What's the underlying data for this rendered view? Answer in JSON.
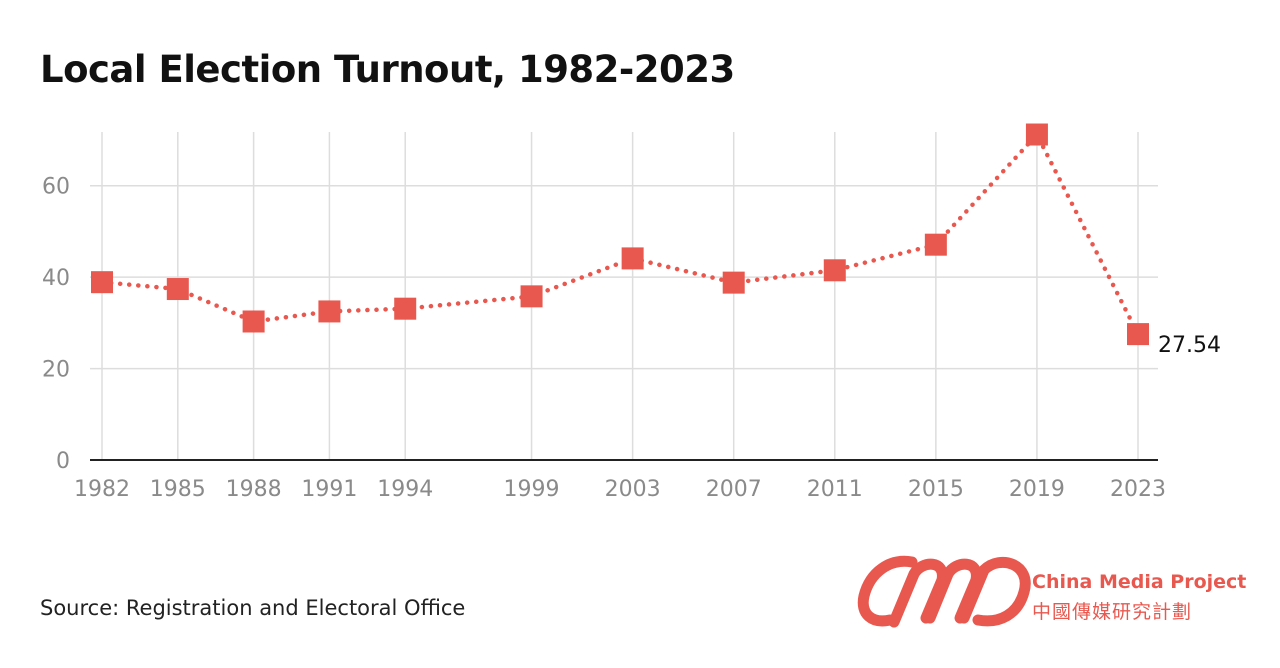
{
  "title": "Local Election Turnout, 1982-2023",
  "source": "Source: Registration and Electoral Office",
  "brand": {
    "name_en": "China Media Project",
    "name_zh": "中國傳媒研究計劃"
  },
  "colors": {
    "series": "#e8584f",
    "grid": "#dddddd",
    "axis": "#222222",
    "tick_text": "#8a8a8a"
  },
  "chart_data": {
    "type": "line",
    "title": "Local Election Turnout, 1982-2023",
    "xlabel": "",
    "ylabel": "",
    "x": [
      1982,
      1985,
      1988,
      1991,
      1994,
      1999,
      2003,
      2007,
      2011,
      2015,
      2019,
      2023
    ],
    "x_tick_labels": [
      "1982",
      "1985",
      "1988",
      "1991",
      "1994",
      "1999",
      "2003",
      "2007",
      "2011",
      "2015",
      "2019",
      "2023"
    ],
    "series": [
      {
        "values": [
          38.9,
          37.4,
          30.3,
          32.5,
          33.1,
          35.8,
          44.1,
          38.8,
          41.5,
          47.1,
          71.2,
          27.54
        ]
      }
    ],
    "y_ticks": [
      0,
      20,
      40,
      60
    ],
    "y_tick_labels": [
      "0",
      "20",
      "40",
      "60"
    ],
    "ylim": [
      0,
      70
    ],
    "grid": true,
    "legend": "none",
    "marker": "square",
    "line_style": "dotted",
    "data_labels": [
      {
        "index": 11,
        "text": "27.54"
      }
    ]
  }
}
